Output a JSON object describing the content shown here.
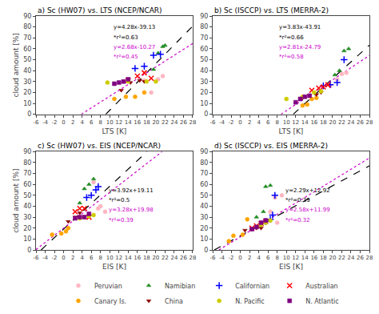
{
  "chart_data": [
    {
      "type": "scatter",
      "title": "a) Sc (HW07) vs. LTS (NCEP/NCAR)",
      "x_label": "LTS [K]",
      "y_label": "cloud amount [%]",
      "xlim": [
        -6,
        28
      ],
      "ylim": [
        0,
        90
      ],
      "xticks": [
        -6,
        -4,
        -2,
        0,
        2,
        4,
        6,
        8,
        10,
        12,
        14,
        16,
        18,
        20,
        22,
        24,
        26,
        28
      ],
      "yticks": [
        0,
        10,
        20,
        30,
        40,
        50,
        60,
        70,
        80,
        90
      ],
      "grid": false,
      "legend": "bottom",
      "series": [
        {
          "type": "line",
          "color": "#000000",
          "line_style": "dashed",
          "x": [
            9.142523,
            28
          ],
          "values": [
            0,
            80.71
          ]
        },
        {
          "type": "line",
          "color": "#CC00CC",
          "line_style": "dotted",
          "x": [
            3.83209,
            28
          ],
          "values": [
            0,
            64.77
          ]
        },
        {
          "name": "Peruvian",
          "color": "#FFB6C1",
          "marker": "circle",
          "x": [
            17.5,
            19.0,
            20.5,
            21.5
          ],
          "values": [
            31,
            20,
            32,
            35
          ]
        },
        {
          "name": "Namibian",
          "color": "#228B22",
          "marker": "triangle-up",
          "x": [
            19.5,
            20.5,
            21.5,
            22.0
          ],
          "values": [
            41,
            56,
            62,
            63
          ]
        },
        {
          "name": "Californian",
          "color": "#0000FF",
          "marker": "plus",
          "x": [
            15.5,
            17.5,
            19.5,
            21.0
          ],
          "values": [
            42,
            44,
            54,
            55
          ]
        },
        {
          "name": "Australian",
          "color": "#FF0000",
          "marker": "x",
          "x": [
            14.0,
            16.0,
            17.5,
            19.0
          ],
          "values": [
            31,
            35,
            38,
            33
          ]
        },
        {
          "name": "Canary Is.",
          "color": "#FFA500",
          "marker": "circle",
          "x": [
            11.0,
            13.5,
            15.5,
            17.5
          ],
          "values": [
            14,
            16,
            16,
            20
          ]
        },
        {
          "name": "China",
          "color": "#8B0000",
          "marker": "triangle-down",
          "x": [
            12.5,
            14.5,
            16.5,
            17.5
          ],
          "values": [
            22,
            29,
            31,
            30
          ]
        },
        {
          "name": "N. Pacific",
          "color": "#CCCC00",
          "marker": "circle",
          "x": [
            9.5,
            14.0,
            18.0,
            20.0
          ],
          "values": [
            29,
            30,
            30,
            30
          ]
        },
        {
          "name": "N. Atlantic",
          "color": "#800080",
          "marker": "square",
          "x": [
            11.0,
            12.0,
            13.0,
            14.0
          ],
          "values": [
            28,
            29,
            30,
            32
          ]
        }
      ],
      "annotations": [
        {
          "text": "y=4.28x-39.13",
          "x": 10.5,
          "y": 75,
          "color": "#000000"
        },
        {
          "text": "*r²=0.63",
          "x": 10.5,
          "y": 66,
          "color": "#000000"
        },
        {
          "text": "y=2.68x-10.27",
          "x": 10.5,
          "y": 57,
          "color": "#CC00CC"
        },
        {
          "text": "*r²=0.45",
          "x": 10.5,
          "y": 48,
          "color": "#CC00CC"
        }
      ]
    },
    {
      "type": "scatter",
      "title": "b) Sc (ISCCP) vs. LTS (MERRA-2)",
      "x_label": "LTS [K]",
      "xlim": [
        -6,
        28
      ],
      "ylim": [
        0,
        90
      ],
      "xticks": [
        -6,
        -4,
        -2,
        0,
        2,
        4,
        6,
        8,
        10,
        12,
        14,
        16,
        18,
        20,
        22,
        24,
        26,
        28
      ],
      "yticks": [
        0,
        10,
        20,
        30,
        40,
        50,
        60,
        70,
        80,
        90
      ],
      "grid": false,
      "series": [
        {
          "type": "line",
          "color": "#000000",
          "line_style": "dashed",
          "x": [
            11.464752,
            28
          ],
          "values": [
            0,
            63.33
          ]
        },
        {
          "type": "line",
          "color": "#CC00CC",
          "line_style": "dotted",
          "x": [
            8.822064,
            28
          ],
          "values": [
            0,
            53.89
          ]
        },
        {
          "color": "#FFB6C1",
          "marker": "circle",
          "x": [
            19.5,
            21.0,
            22.0,
            23.0
          ],
          "values": [
            26,
            32,
            37,
            38
          ]
        },
        {
          "color": "#228B22",
          "marker": "triangle-up",
          "x": [
            20.5,
            21.5,
            22.5,
            23.5
          ],
          "values": [
            36,
            40,
            58,
            60
          ]
        },
        {
          "color": "#0000FF",
          "marker": "plus",
          "x": [
            18.0,
            19.5,
            21.0,
            22.5
          ],
          "values": [
            26,
            27,
            29,
            50
          ]
        },
        {
          "color": "#FF0000",
          "marker": "x",
          "x": [
            15.5,
            17.0,
            18.0,
            19.0
          ],
          "values": [
            22,
            24,
            25,
            27
          ]
        },
        {
          "color": "#FFA500",
          "marker": "circle",
          "x": [
            13.5,
            14.5,
            15.5,
            16.5
          ],
          "values": [
            8,
            9,
            14,
            15
          ]
        },
        {
          "color": "#8B0000",
          "marker": "triangle-down",
          "x": [
            13.5,
            15.0,
            16.5,
            17.5
          ],
          "values": [
            15,
            17,
            18,
            20
          ]
        },
        {
          "color": "#CCCC00",
          "marker": "circle",
          "x": [
            10.0,
            13.5,
            16.0,
            17.5
          ],
          "values": [
            14,
            16,
            20,
            21
          ]
        },
        {
          "color": "#800080",
          "marker": "square",
          "x": [
            12.0,
            13.0,
            14.0,
            15.0
          ],
          "values": [
            11,
            14,
            16,
            17
          ]
        }
      ],
      "annotations": [
        {
          "text": "y=3.83x-43.91",
          "x": 8.0,
          "y": 75,
          "color": "#000000"
        },
        {
          "text": "*r²=0.66",
          "x": 8.0,
          "y": 66,
          "color": "#000000"
        },
        {
          "text": "y=2.81x-24.79",
          "x": 8.0,
          "y": 57,
          "color": "#CC00CC"
        },
        {
          "text": "*r²=0.58",
          "x": 8.0,
          "y": 48,
          "color": "#CC00CC"
        }
      ]
    },
    {
      "type": "scatter",
      "title": "c) Sc (HW07) vs. EIS (NCEP/NCAR)",
      "x_label": "EIS [K]",
      "y_label": "cloud amount [%]",
      "xlim": [
        -6,
        28
      ],
      "ylim": [
        0,
        90
      ],
      "xticks": [
        -6,
        -4,
        -2,
        0,
        2,
        4,
        6,
        8,
        10,
        12,
        14,
        16,
        18,
        20,
        22,
        24,
        26,
        28
      ],
      "yticks": [
        0,
        10,
        20,
        30,
        40,
        50,
        60,
        70,
        80,
        90
      ],
      "grid": false,
      "series": [
        {
          "type": "line",
          "color": "#000000",
          "line_style": "dashed",
          "x": [
            -4.875,
            18.084184
          ],
          "values": [
            0,
            90
          ]
        },
        {
          "type": "line",
          "color": "#CC00CC",
          "line_style": "dotted",
          "x": [
            -6,
            21.347561
          ],
          "values": [
            0.3,
            90
          ]
        },
        {
          "color": "#FFB6C1",
          "marker": "circle",
          "x": [
            6.5,
            7.5,
            8.0,
            9.0
          ],
          "values": [
            62,
            38,
            40,
            35
          ]
        },
        {
          "color": "#228B22",
          "marker": "triangle-up",
          "x": [
            3.5,
            4.5,
            5.5,
            6.5
          ],
          "values": [
            43,
            56,
            60,
            65
          ]
        },
        {
          "color": "#0000FF",
          "marker": "plus",
          "x": [
            5.0,
            6.0,
            7.0,
            7.5
          ],
          "values": [
            48,
            50,
            55,
            58
          ]
        },
        {
          "color": "#FF0000",
          "marker": "x",
          "x": [
            2.5,
            3.5,
            4.5,
            5.5
          ],
          "values": [
            35,
            38,
            38,
            30
          ]
        },
        {
          "color": "#FFA500",
          "marker": "circle",
          "x": [
            -2.5,
            -0.5,
            0.5,
            1.0
          ],
          "values": [
            14,
            15,
            17,
            20
          ]
        },
        {
          "color": "#8B0000",
          "marker": "triangle-down",
          "x": [
            1.0,
            2.5,
            3.5,
            4.5
          ],
          "values": [
            26,
            30,
            34,
            30
          ]
        },
        {
          "color": "#CCCC00",
          "marker": "circle",
          "x": [
            3.5,
            4.5,
            5.5,
            6.5
          ],
          "values": [
            29,
            30,
            31,
            32
          ]
        },
        {
          "color": "#800080",
          "marker": "square",
          "x": [
            2.5,
            3.5,
            4.5,
            5.5
          ],
          "values": [
            29,
            30,
            30,
            33
          ]
        }
      ],
      "annotations": [
        {
          "text": "y=3.92x+19.11",
          "x": 9.5,
          "y": 50,
          "color": "#000000"
        },
        {
          "text": "*r²=0.5",
          "x": 9.5,
          "y": 41,
          "color": "#000000"
        },
        {
          "text": "y=3.28x+19.98",
          "x": 9.5,
          "y": 32,
          "color": "#CC00CC"
        },
        {
          "text": "*r²=0.39",
          "x": 9.5,
          "y": 23,
          "color": "#CC00CC"
        }
      ]
    },
    {
      "type": "scatter",
      "title": "d) Sc (ISCCP) vs. EIS (MERRA-2)",
      "x_label": "EIS [K]",
      "xlim": [
        -6,
        28
      ],
      "ylim": [
        0,
        90
      ],
      "xticks": [
        -6,
        -4,
        -2,
        0,
        2,
        4,
        6,
        8,
        10,
        12,
        14,
        16,
        18,
        20,
        22,
        24,
        26,
        28
      ],
      "yticks": [
        0,
        10,
        20,
        30,
        40,
        50,
        60,
        70,
        80,
        90
      ],
      "grid": false,
      "series": [
        {
          "type": "line",
          "color": "#000000",
          "line_style": "dashed",
          "x": [
            -5.641921,
            28
          ],
          "values": [
            0,
            77.04
          ]
        },
        {
          "type": "line",
          "color": "#CC00CC",
          "line_style": "dotted",
          "x": [
            -4.647287,
            28
          ],
          "values": [
            0,
            84.23
          ]
        },
        {
          "color": "#FFB6C1",
          "marker": "circle",
          "x": [
            6.5,
            7.5,
            8.0,
            9.0
          ],
          "values": [
            35,
            48,
            25,
            50
          ]
        },
        {
          "color": "#228B22",
          "marker": "triangle-up",
          "x": [
            3.5,
            5.0,
            5.5,
            6.5
          ],
          "values": [
            30,
            35,
            58,
            59
          ]
        },
        {
          "color": "#0000FF",
          "marker": "plus",
          "x": [
            5.5,
            6.5,
            7.0,
            7.5
          ],
          "values": [
            26,
            28,
            32,
            50
          ]
        },
        {
          "color": "#FF0000",
          "marker": "x",
          "x": [
            2.5,
            3.5,
            4.5,
            5.5
          ],
          "values": [
            20,
            22,
            24,
            26
          ]
        },
        {
          "color": "#FFA500",
          "marker": "circle",
          "x": [
            -2.5,
            -1.5,
            0.5,
            1.5
          ],
          "values": [
            8,
            13,
            14,
            28
          ]
        },
        {
          "color": "#8B0000",
          "marker": "triangle-down",
          "x": [
            1.0,
            2.5,
            3.5,
            4.5
          ],
          "values": [
            18,
            19,
            20,
            20
          ]
        },
        {
          "color": "#CCCC00",
          "marker": "circle",
          "x": [
            3.5,
            4.5,
            5.5,
            6.5
          ],
          "values": [
            21,
            23,
            25,
            27
          ]
        },
        {
          "color": "#800080",
          "marker": "square",
          "x": [
            2.5,
            3.5,
            4.5,
            5.5
          ],
          "values": [
            19,
            21,
            25,
            27
          ]
        }
      ],
      "annotations": [
        {
          "text": "y=2.29x+12.92",
          "x": 9.5,
          "y": 50,
          "color": "#000000"
        },
        {
          "text": "*r²=0.39",
          "x": 9.5,
          "y": 41,
          "color": "#000000"
        },
        {
          "text": "y=2.58x+11.99",
          "x": 9.5,
          "y": 32,
          "color": "#CC00CC"
        },
        {
          "text": "*r²=0.32",
          "x": 9.5,
          "y": 23,
          "color": "#CC00CC"
        }
      ]
    }
  ]
}
